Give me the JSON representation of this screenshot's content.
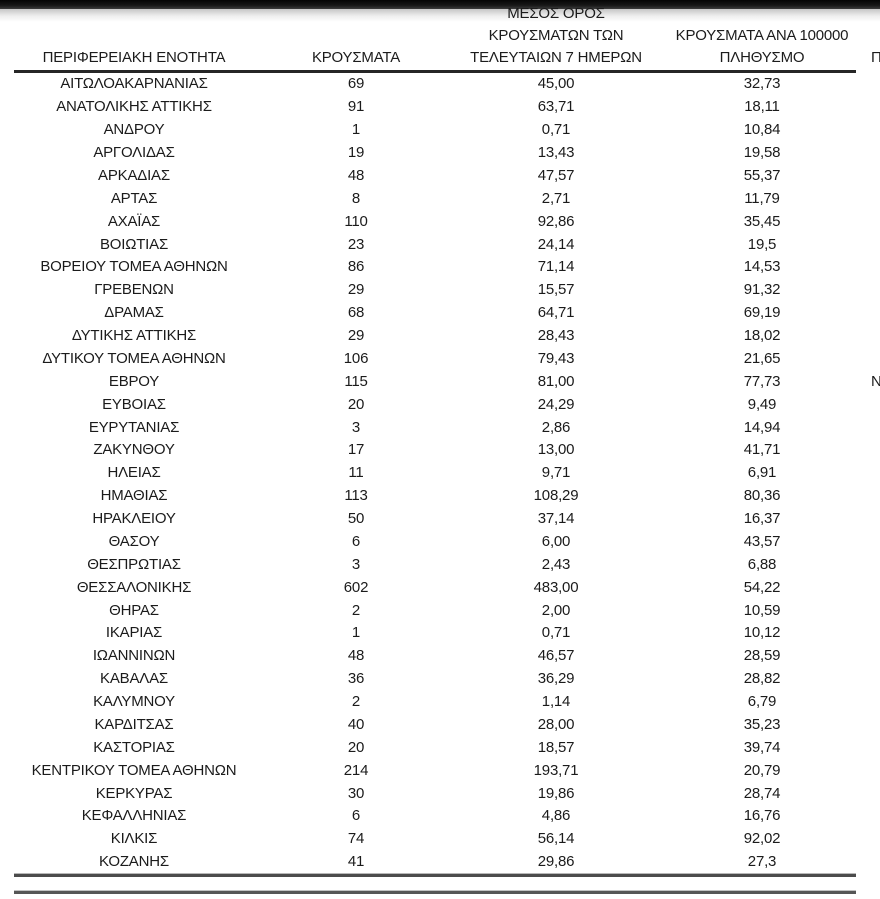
{
  "page": {
    "background_color": "#ffffff",
    "top_bar_color": "#181818",
    "text_color": "#1b1b1b",
    "rule_color": "#262626"
  },
  "table": {
    "headers": {
      "region": {
        "line1": "ΠΕΡΙΦΕΡΕΙΑΚΗ ΕΝΟΤΗΤΑ"
      },
      "cases": {
        "line1": "ΚΡΟΥΣΜΑΤΑ"
      },
      "avg7days": {
        "line1": "ΜΕΣΟΣ ΟΡΟΣ",
        "line2": "ΚΡΟΥΣΜΑΤΩΝ ΤΩΝ",
        "line3": "ΤΕΛΕΥΤΑΙΩΝ 7 ΗΜΕΡΩΝ"
      },
      "per100k": {
        "line1": "ΚΡΟΥΣΜΑΤΑ ΑΝΑ 100000",
        "line2": "ΠΛΗΘΥΣΜΟ"
      },
      "clipped_column": {
        "partial_text": "Π"
      }
    },
    "rows": [
      [
        "ΑΙΤΩΛΟΑΚΑΡΝΑΝΙΑΣ",
        "69",
        "45,00",
        "32,73",
        ""
      ],
      [
        "ΑΝΑΤΟΛΙΚΗΣ ΑΤΤΙΚΗΣ",
        "91",
        "63,71",
        "18,11",
        ""
      ],
      [
        "ΑΝΔΡΟΥ",
        "1",
        "0,71",
        "10,84",
        ""
      ],
      [
        "ΑΡΓΟΛΙΔΑΣ",
        "19",
        "13,43",
        "19,58",
        ""
      ],
      [
        "ΑΡΚΑΔΙΑΣ",
        "48",
        "47,57",
        "55,37",
        ""
      ],
      [
        "ΑΡΤΑΣ",
        "8",
        "2,71",
        "11,79",
        ""
      ],
      [
        "ΑΧΑΪΑΣ",
        "110",
        "92,86",
        "35,45",
        ""
      ],
      [
        "ΒΟΙΩΤΙΑΣ",
        "23",
        "24,14",
        "19,5",
        ""
      ],
      [
        "ΒΟΡΕΙΟΥ ΤΟΜΕΑ ΑΘΗΝΩΝ",
        "86",
        "71,14",
        "14,53",
        ""
      ],
      [
        "ΓΡΕΒΕΝΩΝ",
        "29",
        "15,57",
        "91,32",
        ""
      ],
      [
        "ΔΡΑΜΑΣ",
        "68",
        "64,71",
        "69,19",
        ""
      ],
      [
        "ΔΥΤΙΚΗΣ ΑΤΤΙΚΗΣ",
        "29",
        "28,43",
        "18,02",
        ""
      ],
      [
        "ΔΥΤΙΚΟΥ ΤΟΜΕΑ ΑΘΗΝΩΝ",
        "106",
        "79,43",
        "21,65",
        ""
      ],
      [
        "ΕΒΡΟΥ",
        "115",
        "81,00",
        "77,73",
        "Ν"
      ],
      [
        "ΕΥΒΟΙΑΣ",
        "20",
        "24,29",
        "9,49",
        ""
      ],
      [
        "ΕΥΡΥΤΑΝΙΑΣ",
        "3",
        "2,86",
        "14,94",
        ""
      ],
      [
        "ΖΑΚΥΝΘΟΥ",
        "17",
        "13,00",
        "41,71",
        ""
      ],
      [
        "ΗΛΕΙΑΣ",
        "11",
        "9,71",
        "6,91",
        ""
      ],
      [
        "ΗΜΑΘΙΑΣ",
        "113",
        "108,29",
        "80,36",
        ""
      ],
      [
        "ΗΡΑΚΛΕΙΟΥ",
        "50",
        "37,14",
        "16,37",
        ""
      ],
      [
        "ΘΑΣΟΥ",
        "6",
        "6,00",
        "43,57",
        ""
      ],
      [
        "ΘΕΣΠΡΩΤΙΑΣ",
        "3",
        "2,43",
        "6,88",
        ""
      ],
      [
        "ΘΕΣΣΑΛΟΝΙΚΗΣ",
        "602",
        "483,00",
        "54,22",
        ""
      ],
      [
        "ΘΗΡΑΣ",
        "2",
        "2,00",
        "10,59",
        ""
      ],
      [
        "ΙΚΑΡΙΑΣ",
        "1",
        "0,71",
        "10,12",
        ""
      ],
      [
        "ΙΩΑΝΝΙΝΩΝ",
        "48",
        "46,57",
        "28,59",
        ""
      ],
      [
        "ΚΑΒΑΛΑΣ",
        "36",
        "36,29",
        "28,82",
        ""
      ],
      [
        "ΚΑΛΥΜΝΟΥ",
        "2",
        "1,14",
        "6,79",
        ""
      ],
      [
        "ΚΑΡΔΙΤΣΑΣ",
        "40",
        "28,00",
        "35,23",
        ""
      ],
      [
        "ΚΑΣΤΟΡΙΑΣ",
        "20",
        "18,57",
        "39,74",
        ""
      ],
      [
        "ΚΕΝΤΡΙΚΟΥ ΤΟΜΕΑ ΑΘΗΝΩΝ",
        "214",
        "193,71",
        "20,79",
        ""
      ],
      [
        "ΚΕΡΚΥΡΑΣ",
        "30",
        "19,86",
        "28,74",
        ""
      ],
      [
        "ΚΕΦΑΛΛΗΝΙΑΣ",
        "6",
        "4,86",
        "16,76",
        ""
      ],
      [
        "ΚΙΛΚΙΣ",
        "74",
        "56,14",
        "92,02",
        ""
      ],
      [
        "ΚΟΖΑΝΗΣ",
        "41",
        "29,86",
        "27,3",
        ""
      ]
    ]
  }
}
